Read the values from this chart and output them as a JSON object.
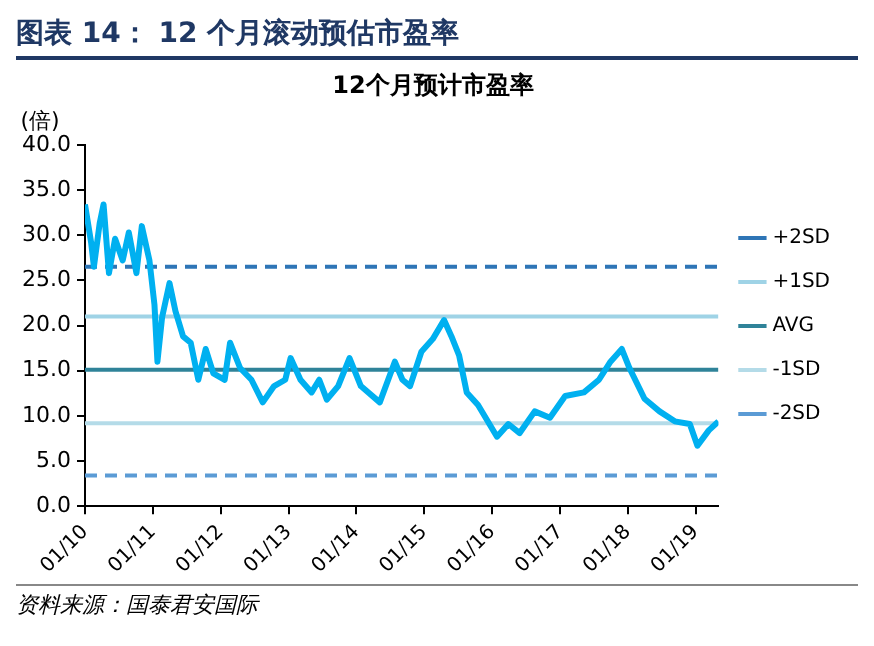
{
  "chart_data": {
    "type": "line",
    "title": "图表 14： 12 个月滚动预估市盈率",
    "subtitle": "12个月预计市盈率",
    "ylabel": "(倍)",
    "x": [
      "2010-01-01",
      "2010-02-03",
      "2010-02-18",
      "2010-03-21",
      "2010-04-11",
      "2010-05-10",
      "2010-06-12",
      "2010-07-23",
      "2010-08-25",
      "2010-10-05",
      "2010-11-03",
      "2010-12-14",
      "2011-01-10",
      "2011-01-26",
      "2011-02-20",
      "2011-04-01",
      "2011-05-03",
      "2011-06-13",
      "2011-07-24",
      "2011-09-03",
      "2011-10-13",
      "2011-11-23",
      "2012-01-23",
      "2012-02-21",
      "2012-04-15",
      "2012-06-15",
      "2012-08-15",
      "2012-10-15",
      "2012-12-14",
      "2013-01-12",
      "2013-03-06",
      "2013-05-05",
      "2013-06-15",
      "2013-07-26",
      "2013-09-25",
      "2013-11-25",
      "2014-01-25",
      "2014-05-07",
      "2014-07-27",
      "2014-09-06",
      "2014-10-17",
      "2014-12-17",
      "2015-02-16",
      "2015-04-18",
      "2015-05-28",
      "2015-07-08",
      "2015-08-18",
      "2015-10-18",
      "2016-01-28",
      "2016-03-29",
      "2016-05-29",
      "2016-08-18",
      "2016-11-08",
      "2017-01-29",
      "2017-05-10",
      "2017-07-30",
      "2017-09-30",
      "2017-11-30",
      "2018-01-10",
      "2018-04-01",
      "2018-06-21",
      "2018-09-11",
      "2018-12-01",
      "2019-01-11",
      "2019-03-13",
      "2019-05-04"
    ],
    "series": [
      {
        "color": "#00b0f0",
        "values": [
          33.4,
          29.2,
          26.5,
          31.3,
          33.4,
          25.8,
          29.6,
          27.2,
          30.3,
          25.8,
          31.0,
          27.2,
          22.3,
          16.0,
          20.9,
          24.7,
          21.6,
          18.8,
          18.1,
          14.0,
          17.4,
          14.7,
          14.0,
          18.1,
          15.3,
          14.0,
          11.5,
          13.3,
          14.0,
          16.4,
          14.0,
          12.6,
          14.0,
          11.8,
          13.3,
          16.4,
          13.3,
          11.5,
          16.0,
          14.0,
          13.3,
          17.1,
          18.5,
          20.6,
          18.8,
          16.7,
          12.6,
          11.2,
          7.7,
          9.1,
          8.1,
          10.5,
          9.8,
          12.2,
          12.6,
          14.0,
          16.0,
          17.4,
          15.3,
          11.9,
          10.5,
          9.4,
          9.1,
          6.7,
          8.4,
          9.4
        ]
      },
      {
        "name": "+2SD",
        "color": "#2e75b6",
        "line_style": "dashed",
        "x": [
          "2010-01-01",
          "2019-05-04"
        ],
        "values": [
          26.5,
          26.5
        ]
      },
      {
        "name": "+1SD",
        "color": "#9fd3e6",
        "line_style": "solid",
        "x": [
          "2010-01-01",
          "2019-05-04"
        ],
        "values": [
          21.0,
          21.0
        ]
      },
      {
        "name": "AVG",
        "color": "#2f8399",
        "line_style": "solid",
        "x": [
          "2010-01-01",
          "2019-05-04"
        ],
        "values": [
          15.1,
          15.1
        ]
      },
      {
        "name": "-1SD",
        "color": "#b4dbe8",
        "line_style": "solid",
        "x": [
          "2010-01-01",
          "2019-05-04"
        ],
        "values": [
          9.2,
          9.2
        ]
      },
      {
        "name": "-2SD",
        "color": "#5b9bd5",
        "line_style": "dashed",
        "x": [
          "2010-01-01",
          "2019-05-04"
        ],
        "values": [
          3.4,
          3.4
        ]
      }
    ],
    "xlim": [
      "2010-01-01",
      "2019-05-04"
    ],
    "xticks": [
      {
        "value": "2010-01-01",
        "label": "01/10"
      },
      {
        "value": "2011-01-01",
        "label": "01/11"
      },
      {
        "value": "2012-01-01",
        "label": "01/12"
      },
      {
        "value": "2013-01-01",
        "label": "01/13"
      },
      {
        "value": "2014-01-01",
        "label": "01/14"
      },
      {
        "value": "2015-01-01",
        "label": "01/15"
      },
      {
        "value": "2016-01-01",
        "label": "01/16"
      },
      {
        "value": "2017-01-01",
        "label": "01/17"
      },
      {
        "value": "2018-01-01",
        "label": "01/18"
      },
      {
        "value": "2019-01-01",
        "label": "01/19"
      }
    ],
    "ylim": [
      0,
      40
    ],
    "yticks": [
      {
        "value": 0,
        "label": "0.0"
      },
      {
        "value": 5,
        "label": "5.0"
      },
      {
        "value": 10,
        "label": "10.0"
      },
      {
        "value": 15,
        "label": "15.0"
      },
      {
        "value": 20,
        "label": "20.0"
      },
      {
        "value": 25,
        "label": "25.0"
      },
      {
        "value": 30,
        "label": "30.0"
      },
      {
        "value": 35,
        "label": "35.0"
      },
      {
        "value": 40,
        "label": "40.0"
      }
    ],
    "grid": false,
    "legend": "right",
    "marker": "none",
    "annotations": [
      "资料来源：国泰君安国际"
    ]
  }
}
